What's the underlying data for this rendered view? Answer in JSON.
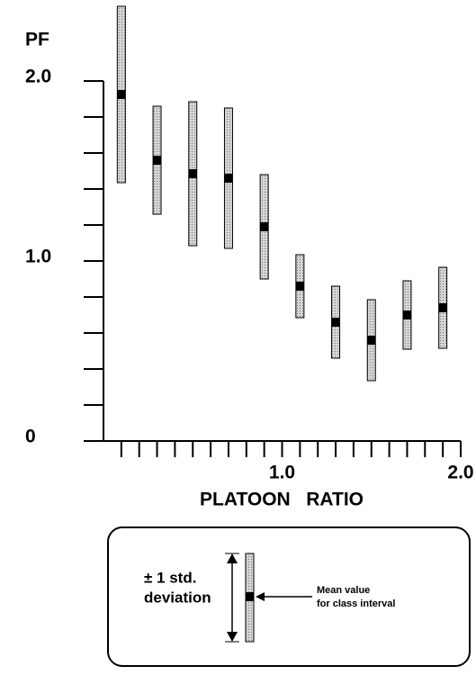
{
  "chart_data": {
    "type": "errorbar",
    "y_label": "PF",
    "x_label": "PLATOON   RATIO",
    "x": [
      0.1,
      0.3,
      0.5,
      0.7,
      0.9,
      1.1,
      1.3,
      1.5,
      1.7,
      1.9
    ],
    "values": [
      1.925,
      1.56,
      1.485,
      1.46,
      1.19,
      0.86,
      0.66,
      0.56,
      0.7,
      0.74
    ],
    "errors": [
      0.49,
      0.3,
      0.4,
      0.39,
      0.29,
      0.175,
      0.2,
      0.225,
      0.19,
      0.225
    ],
    "xlim": [
      0,
      2.0
    ],
    "ylim": [
      0,
      2.45
    ],
    "xticks": [
      {
        "value": 1.0,
        "label": "1.0"
      },
      {
        "value": 2.0,
        "label": "2.0"
      }
    ],
    "xminor_ticks": [
      0.1,
      0.2,
      0.3,
      0.4,
      0.5,
      0.6,
      0.7,
      0.8,
      0.9,
      1.1,
      1.2,
      1.3,
      1.4,
      1.5,
      1.6,
      1.7,
      1.8,
      1.9
    ],
    "yticks": [
      0,
      {
        "value": 1.0,
        "label": "1.0"
      },
      {
        "value": 2.0,
        "label": "2.0"
      }
    ],
    "yminor_ticks": [
      0.2,
      0.4,
      0.6,
      0.8,
      1.2,
      1.4,
      1.6,
      1.8
    ],
    "bar_color": "#bdbdbd",
    "mean_color": "#000000",
    "legend": {
      "spread": [
        "± 1 std.",
        "deviation"
      ],
      "mean": [
        "Mean value",
        "for class interval"
      ]
    }
  }
}
